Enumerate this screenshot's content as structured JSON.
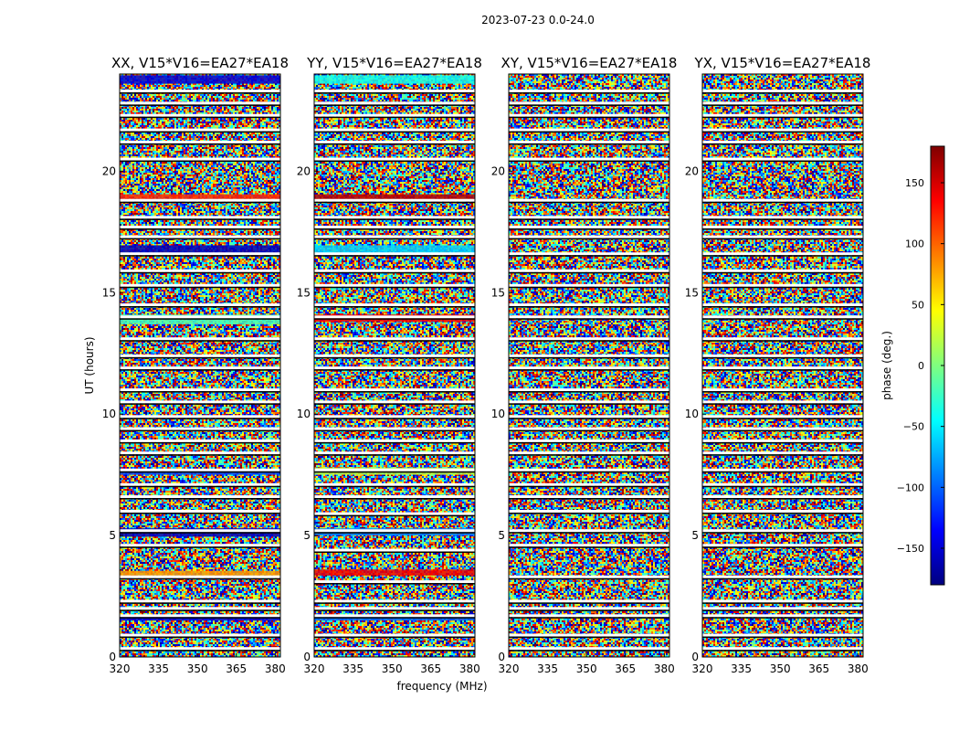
{
  "figure": {
    "suptitle": "2023-07-23 0.0-24.0",
    "xlabel": "frequency (MHz)",
    "ylabel": "UT (hours)"
  },
  "chart_data": {
    "type": "heatmap",
    "title": "2023-07-23 0.0-24.0",
    "xlabel": "frequency (MHz)",
    "ylabel": "UT (hours)",
    "xlim": [
      320,
      382
    ],
    "ylim": [
      0,
      24
    ],
    "xticks": [
      320,
      335,
      350,
      365,
      380
    ],
    "yticks": [
      0,
      5,
      10,
      15,
      20
    ],
    "panels": [
      {
        "title": "XX, V15*V16=EA27*EA18",
        "flagged_ut": [
          0.35,
          0.9,
          1.7,
          2.0,
          2.3,
          3.3,
          4.6,
          5.2,
          6.0,
          6.6,
          7.1,
          7.7,
          8.4,
          8.9,
          9.4,
          9.9,
          10.5,
          11.0,
          11.9,
          12.4,
          13.1,
          14.0,
          14.5,
          15.3,
          15.9,
          16.6,
          17.3,
          17.7,
          18.1,
          18.8,
          20.5,
          21.2,
          21.7,
          22.3,
          22.8,
          23.3
        ],
        "coherent_bands": [
          {
            "ut": [
              23.6,
              23.95
            ],
            "phase_deg": -150
          },
          {
            "ut": [
              18.85,
              19.05
            ],
            "phase_deg": 120
          },
          {
            "ut": [
              16.55,
              16.95
            ],
            "phase_deg": -160
          },
          {
            "ut": [
              13.7,
              14.1
            ],
            "phase_deg": -20
          },
          {
            "ut": [
              7.5,
              7.7
            ],
            "phase_deg": -110
          },
          {
            "ut": [
              4.95,
              5.3
            ],
            "phase_deg": -160
          },
          {
            "ut": [
              3.35,
              3.55
            ],
            "phase_deg": 80
          },
          {
            "ut": [
              1.5,
              1.7
            ],
            "phase_deg": -150
          }
        ]
      },
      {
        "title": "YY, V15*V16=EA27*EA18",
        "flagged_ut": [
          0.35,
          0.9,
          1.7,
          2.0,
          2.3,
          3.1,
          4.4,
          5.2,
          5.9,
          6.6,
          7.1,
          7.7,
          8.4,
          8.9,
          9.4,
          9.9,
          10.5,
          11.0,
          11.9,
          12.4,
          13.1,
          14.0,
          14.5,
          15.3,
          15.9,
          16.6,
          17.3,
          17.7,
          18.1,
          18.8,
          20.5,
          21.2,
          21.7,
          22.3,
          22.8,
          23.3
        ],
        "coherent_bands": [
          {
            "ut": [
              23.6,
              23.95
            ],
            "phase_deg": -40
          },
          {
            "ut": [
              18.8,
              19.05
            ],
            "phase_deg": 160
          },
          {
            "ut": [
              16.6,
              16.95
            ],
            "phase_deg": -60
          },
          {
            "ut": [
              13.8,
              14.1
            ],
            "phase_deg": 140
          },
          {
            "ut": [
              7.5,
              7.8
            ],
            "phase_deg": 20
          },
          {
            "ut": [
              5.0,
              5.3
            ],
            "phase_deg": -90
          },
          {
            "ut": [
              3.35,
              3.6
            ],
            "phase_deg": 140
          },
          {
            "ut": [
              1.5,
              1.7
            ],
            "phase_deg": -100
          }
        ]
      },
      {
        "title": "XY, V15*V16=EA27*EA18",
        "flagged_ut": [
          0.35,
          0.9,
          1.7,
          2.0,
          2.3,
          3.3,
          4.6,
          5.2,
          6.0,
          6.6,
          7.1,
          7.7,
          8.4,
          8.9,
          9.4,
          9.9,
          10.5,
          11.0,
          11.9,
          12.4,
          13.1,
          14.0,
          14.5,
          15.3,
          15.9,
          16.6,
          17.3,
          17.7,
          18.1,
          18.8,
          20.5,
          21.2,
          21.7,
          22.3,
          22.8,
          23.3
        ],
        "coherent_bands": []
      },
      {
        "title": "YX, V15*V16=EA27*EA18",
        "flagged_ut": [
          0.35,
          0.9,
          1.7,
          2.0,
          2.3,
          3.3,
          4.6,
          5.2,
          6.0,
          6.6,
          7.1,
          7.7,
          8.4,
          8.9,
          9.4,
          9.9,
          10.5,
          11.0,
          11.9,
          12.4,
          13.1,
          14.0,
          14.5,
          15.3,
          15.9,
          16.6,
          17.3,
          17.7,
          18.1,
          18.8,
          20.5,
          21.2,
          21.7,
          22.3,
          22.8,
          23.3
        ],
        "coherent_bands": []
      }
    ],
    "colorbar": {
      "label": "phase (deg.)",
      "range": [
        -180,
        180
      ],
      "ticks": [
        -150,
        -100,
        -50,
        0,
        50,
        100,
        150
      ],
      "tick_labels": [
        "−150",
        "−100",
        "−50",
        "0",
        "50",
        "100",
        "150"
      ],
      "colormap": "jet"
    }
  },
  "colors": {
    "flag_line": "#ffffff",
    "axes_edge": "#000000",
    "jet_stops": [
      "#00007f",
      "#0000ff",
      "#007fff",
      "#00ffff",
      "#7fff7f",
      "#ffff00",
      "#ff7f00",
      "#ff0000",
      "#7f0000"
    ]
  }
}
